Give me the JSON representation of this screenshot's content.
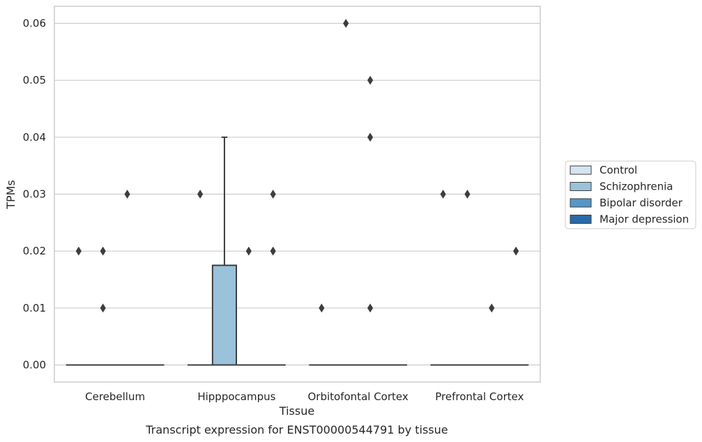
{
  "chart_data": {
    "type": "box",
    "caption": "Transcript expression for ENST00000544791 by tissue",
    "xlabel": "Tissue",
    "ylabel": "TPMs",
    "ylim": [
      -0.003,
      0.063
    ],
    "yticks": [
      0.0,
      0.01,
      0.02,
      0.03,
      0.04,
      0.05,
      0.06
    ],
    "ytick_labels": [
      "0.00",
      "0.01",
      "0.02",
      "0.03",
      "0.04",
      "0.05",
      "0.06"
    ],
    "grid": "horizontal",
    "legend_position": "right",
    "categories": [
      "Cerebellum",
      "Hipppocampus",
      "Orbitofontal Cortex",
      "Prefrontal Cortex"
    ],
    "series": [
      {
        "name": "Control",
        "color": "#d6e4f1",
        "boxes": [
          {
            "q1": 0.0,
            "median": 0.0,
            "q3": 0.0,
            "whisker_low": 0.0,
            "whisker_high": 0.0,
            "outliers": [
              0.02
            ]
          },
          {
            "q1": 0.0,
            "median": 0.0,
            "q3": 0.0,
            "whisker_low": 0.0,
            "whisker_high": 0.0,
            "outliers": [
              0.03
            ]
          },
          {
            "q1": 0.0,
            "median": 0.0,
            "q3": 0.0,
            "whisker_low": 0.0,
            "whisker_high": 0.0,
            "outliers": [
              0.01
            ]
          },
          {
            "q1": 0.0,
            "median": 0.0,
            "q3": 0.0,
            "whisker_low": 0.0,
            "whisker_high": 0.0,
            "outliers": [
              0.03
            ]
          }
        ]
      },
      {
        "name": "Schizophrenia",
        "color": "#9ac2da",
        "boxes": [
          {
            "q1": 0.0,
            "median": 0.0,
            "q3": 0.0,
            "whisker_low": 0.0,
            "whisker_high": 0.0,
            "outliers": [
              0.02,
              0.01
            ]
          },
          {
            "q1": 0.0,
            "median": 0.0,
            "q3": 0.0175,
            "whisker_low": 0.0,
            "whisker_high": 0.04,
            "outliers": []
          },
          {
            "q1": 0.0,
            "median": 0.0,
            "q3": 0.0,
            "whisker_low": 0.0,
            "whisker_high": 0.0,
            "outliers": [
              0.06
            ]
          },
          {
            "q1": 0.0,
            "median": 0.0,
            "q3": 0.0,
            "whisker_low": 0.0,
            "whisker_high": 0.0,
            "outliers": [
              0.03
            ]
          }
        ]
      },
      {
        "name": "Bipolar disorder",
        "color": "#5697c5",
        "boxes": [
          {
            "q1": 0.0,
            "median": 0.0,
            "q3": 0.0,
            "whisker_low": 0.0,
            "whisker_high": 0.0,
            "outliers": [
              0.03
            ]
          },
          {
            "q1": 0.0,
            "median": 0.0,
            "q3": 0.0,
            "whisker_low": 0.0,
            "whisker_high": 0.0,
            "outliers": [
              0.02
            ]
          },
          {
            "q1": 0.0,
            "median": 0.0,
            "q3": 0.0,
            "whisker_low": 0.0,
            "whisker_high": 0.0,
            "outliers": [
              0.05,
              0.04,
              0.01
            ]
          },
          {
            "q1": 0.0,
            "median": 0.0,
            "q3": 0.0,
            "whisker_low": 0.0,
            "whisker_high": 0.0,
            "outliers": [
              0.01
            ]
          }
        ]
      },
      {
        "name": "Major depression",
        "color": "#2c6aa7",
        "boxes": [
          {
            "q1": 0.0,
            "median": 0.0,
            "q3": 0.0,
            "whisker_low": 0.0,
            "whisker_high": 0.0,
            "outliers": []
          },
          {
            "q1": 0.0,
            "median": 0.0,
            "q3": 0.0,
            "whisker_low": 0.0,
            "whisker_high": 0.0,
            "outliers": [
              0.03,
              0.02
            ]
          },
          {
            "q1": 0.0,
            "median": 0.0,
            "q3": 0.0,
            "whisker_low": 0.0,
            "whisker_high": 0.0,
            "outliers": []
          },
          {
            "q1": 0.0,
            "median": 0.0,
            "q3": 0.0,
            "whisker_low": 0.0,
            "whisker_high": 0.0,
            "outliers": [
              0.02
            ]
          }
        ]
      }
    ]
  }
}
